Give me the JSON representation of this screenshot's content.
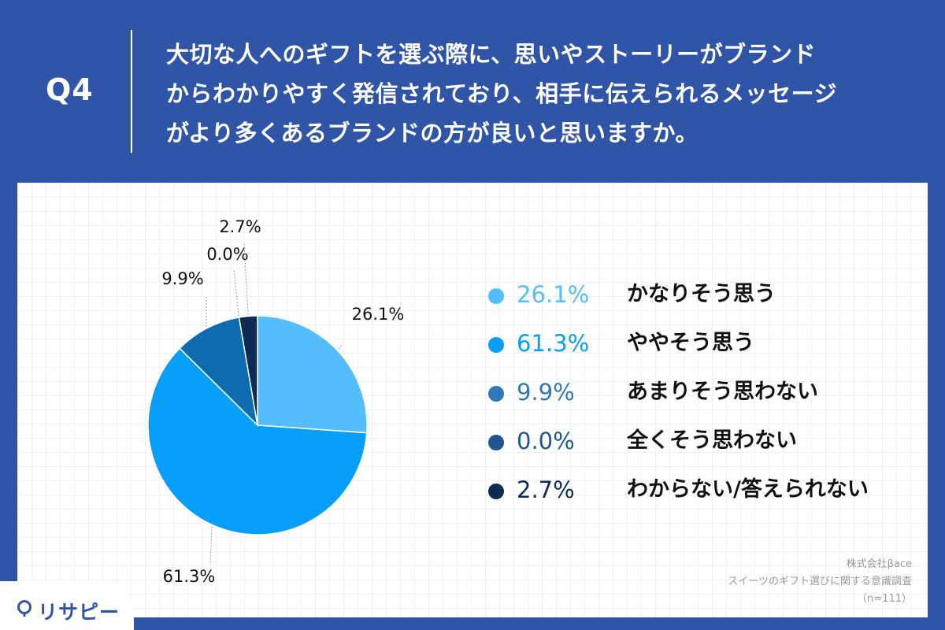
{
  "header": {
    "q_label": "Q4",
    "question": "大切な人へのギフトを選ぶ際に、思いやストーリーがブランド\nからわかりやすく発信されており、相手に伝えられるメッセージ\nがより多くあるブランドの方が良いと思いますか。"
  },
  "chart_data": {
    "type": "pie",
    "categories": [
      "かなりそう思う",
      "ややそう思う",
      "あまりそう思わない",
      "全くそう思わない",
      "わからない/答えられない"
    ],
    "values": [
      26.1,
      61.3,
      9.9,
      0.0,
      2.7
    ],
    "value_labels": [
      "26.1%",
      "61.3%",
      "9.9%",
      "0.0%",
      "2.7%"
    ],
    "colors": [
      "#55bdfb",
      "#069ef8",
      "#0d6bb0",
      "#1b4f8b",
      "#0d2b55"
    ],
    "start_angle": "12 o'clock",
    "direction": "clockwise",
    "legend_position": "right"
  },
  "legend": [
    {
      "pct": "26.1%",
      "label": "かなりそう思う",
      "color": "#55bdfb"
    },
    {
      "pct": "61.3%",
      "label": "ややそう思う",
      "color": "#069ef8"
    },
    {
      "pct": "9.9%",
      "label": "あまりそう思わない",
      "color": "#2f77b9"
    },
    {
      "pct": "0.0%",
      "label": "全くそう思わない",
      "color": "#1f5591"
    },
    {
      "pct": "2.7%",
      "label": "わからない/答えられない",
      "color": "#0d2b55"
    }
  ],
  "source": {
    "company": "株式会社βace",
    "survey": "スイーツのギフト選びに関する意識調査",
    "sample": "（n=111）"
  },
  "logo": {
    "text": "リサピー",
    "color": "#3155a6"
  }
}
